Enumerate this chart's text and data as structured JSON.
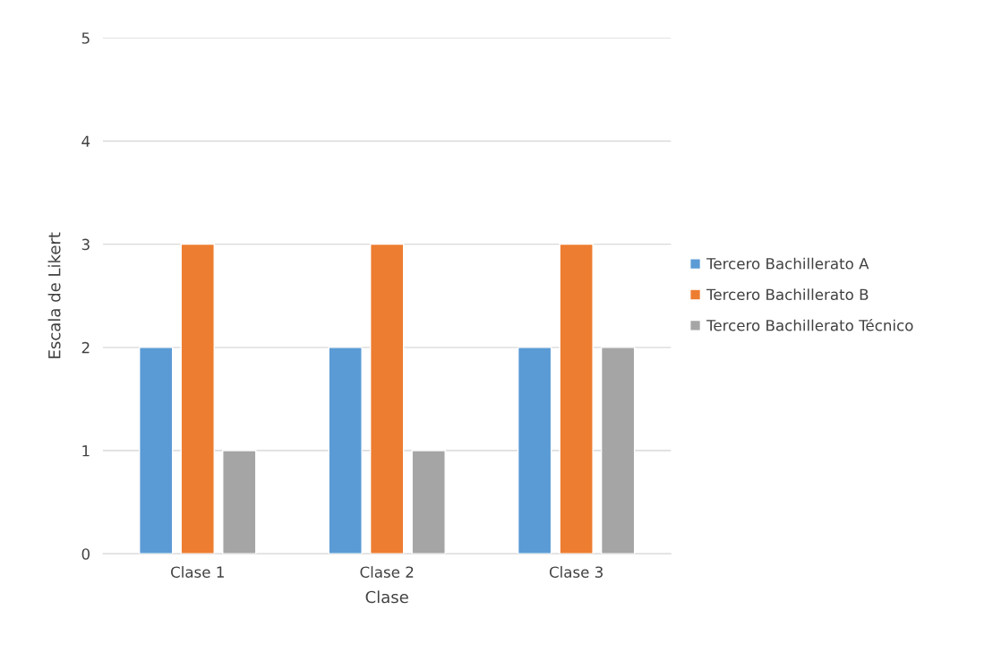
{
  "chart_data": {
    "type": "bar",
    "xlabel": "Clase",
    "ylabel": "Escala de Likert",
    "categories": [
      "Clase 1",
      "Clase 2",
      "Clase 3"
    ],
    "series": [
      {
        "name": "Tercero Bachillerato A",
        "color": "#5b9bd5",
        "values": [
          2,
          2,
          2
        ]
      },
      {
        "name": "Tercero Bachillerato B",
        "color": "#ed7d31",
        "values": [
          3,
          3,
          3
        ]
      },
      {
        "name": "Tercero Bachillerato Técnico",
        "color": "#a5a5a5",
        "values": [
          1,
          1,
          2
        ]
      }
    ],
    "ylim": [
      0,
      5
    ],
    "yticks": [
      0,
      1,
      2,
      3,
      4,
      5
    ],
    "grid": "y",
    "legend": "right"
  }
}
